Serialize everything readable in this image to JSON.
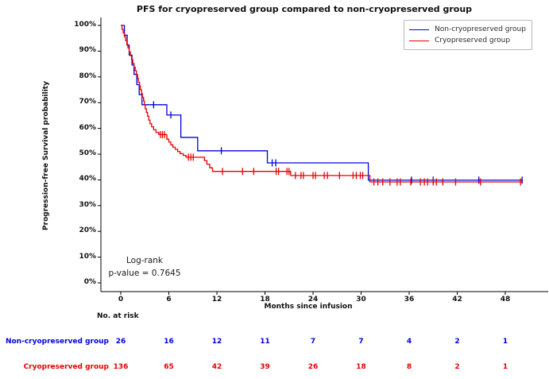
{
  "title": "PFS for cryopreserved group compared to non-cryopreserved group",
  "axes": {
    "ylabel": "Progression-free Survival probability",
    "xlabel": "Months since infusion",
    "ytick_values": [
      0,
      10,
      20,
      30,
      40,
      50,
      60,
      70,
      80,
      90,
      100
    ],
    "ytick_labels": [
      "0%",
      "10%",
      "20%",
      "30%",
      "40%",
      "50%",
      "60%",
      "70%",
      "80%",
      "90%",
      "100%"
    ],
    "xtick_values": [
      0,
      6,
      12,
      18,
      24,
      30,
      36,
      42,
      48
    ],
    "xtick_labels": [
      "0",
      "6",
      "12",
      "18",
      "24",
      "30",
      "36",
      "42",
      "48"
    ]
  },
  "legend": {
    "entries": [
      {
        "label": "Non-cryopreserved group",
        "color": "#0000dd"
      },
      {
        "label": "Cryopreserved group",
        "color": "#e60000"
      }
    ]
  },
  "annotation": {
    "line1": "Log-rank",
    "line2": "p-value = 0.7645"
  },
  "risk_table": {
    "header": "No. at risk",
    "rows": [
      {
        "label": "Non-cryopreserved group",
        "color": "#0000dd",
        "values": [
          "26",
          "16",
          "12",
          "11",
          "7",
          "7",
          "4",
          "2",
          "1"
        ]
      },
      {
        "label": "Cryopreserved group",
        "color": "#e60000",
        "values": [
          "136",
          "65",
          "42",
          "39",
          "26",
          "18",
          "8",
          "2",
          "1"
        ]
      }
    ]
  },
  "chart_data": {
    "type": "line",
    "subtype": "kaplan-meier-step",
    "title": "PFS for cryopreserved group compared to non-cryopreserved group",
    "xlabel": "Months since infusion",
    "ylabel": "Progression-free Survival probability",
    "xlim": [
      -2.5,
      53.4
    ],
    "ylim_percent": [
      0,
      100
    ],
    "grid": false,
    "legend_position": "upper right",
    "series": [
      {
        "name": "Non-cryopreserved group",
        "color": "#0000dd",
        "n_at_start": 26,
        "steps": [
          [
            0,
            100
          ],
          [
            0.45,
            96.2
          ],
          [
            0.8,
            92.3
          ],
          [
            1.05,
            88.5
          ],
          [
            1.4,
            84.6
          ],
          [
            1.65,
            81.0
          ],
          [
            2.0,
            77.0
          ],
          [
            2.3,
            73.1
          ],
          [
            2.65,
            69.2
          ],
          [
            5.75,
            65.2
          ],
          [
            7.5,
            56.5
          ],
          [
            9.6,
            51.3
          ],
          [
            18.3,
            46.6
          ],
          [
            30.9,
            39.9
          ]
        ],
        "end_time": 50.2,
        "censor_times": [
          4.1,
          6.25,
          12.55,
          18.9,
          19.35,
          36.3,
          39.0,
          44.7,
          50.1
        ]
      },
      {
        "name": "Cryopreserved group",
        "color": "#e60000",
        "n_at_start": 136,
        "steps": [
          [
            0,
            100
          ],
          [
            0.15,
            98.5
          ],
          [
            0.3,
            97.1
          ],
          [
            0.45,
            95.6
          ],
          [
            0.6,
            94.1
          ],
          [
            0.75,
            92.6
          ],
          [
            0.9,
            91.2
          ],
          [
            1.05,
            89.7
          ],
          [
            1.2,
            88.2
          ],
          [
            1.35,
            86.8
          ],
          [
            1.5,
            85.3
          ],
          [
            1.65,
            83.8
          ],
          [
            1.8,
            82.4
          ],
          [
            1.95,
            80.9
          ],
          [
            2.1,
            79.4
          ],
          [
            2.2,
            77.9
          ],
          [
            2.35,
            76.5
          ],
          [
            2.45,
            75.0
          ],
          [
            2.6,
            73.5
          ],
          [
            2.7,
            72.1
          ],
          [
            2.85,
            70.6
          ],
          [
            2.95,
            69.1
          ],
          [
            3.05,
            67.6
          ],
          [
            3.2,
            66.2
          ],
          [
            3.35,
            64.7
          ],
          [
            3.5,
            63.2
          ],
          [
            3.65,
            61.8
          ],
          [
            3.85,
            60.6
          ],
          [
            4.1,
            59.5
          ],
          [
            4.4,
            58.4
          ],
          [
            4.75,
            57.6
          ],
          [
            5.75,
            55.8
          ],
          [
            6.0,
            54.7
          ],
          [
            6.25,
            53.6
          ],
          [
            6.5,
            52.7
          ],
          [
            6.8,
            51.9
          ],
          [
            7.1,
            51.0
          ],
          [
            7.4,
            50.2
          ],
          [
            7.8,
            49.5
          ],
          [
            8.15,
            48.8
          ],
          [
            10.45,
            47.5
          ],
          [
            10.75,
            46.1
          ],
          [
            11.1,
            44.7
          ],
          [
            11.45,
            43.3
          ],
          [
            21.2,
            41.7
          ],
          [
            31.1,
            39.2
          ]
        ],
        "end_time": 50.2,
        "censor_times": [
          4.95,
          5.2,
          5.45,
          8.45,
          8.75,
          9.05,
          12.7,
          15.2,
          16.6,
          19.4,
          19.7,
          20.75,
          21.0,
          21.8,
          22.5,
          22.8,
          24.0,
          24.3,
          25.4,
          25.8,
          27.3,
          29.0,
          29.4,
          29.9,
          30.2,
          31.6,
          32.1,
          32.7,
          33.6,
          34.5,
          34.9,
          36.2,
          37.4,
          37.9,
          38.3,
          39.0,
          39.4,
          40.2,
          41.8,
          44.9,
          49.9
        ]
      }
    ],
    "annotation_text": [
      "Log-rank",
      "p-value = 0.7645"
    ],
    "at_risk_times": [
      0,
      6,
      12,
      18,
      24,
      30,
      36,
      42,
      48
    ]
  }
}
